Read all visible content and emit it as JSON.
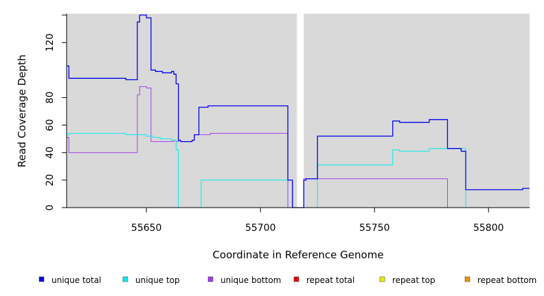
{
  "chart_data": {
    "type": "line",
    "step": true,
    "xlabel": "Coordinate in Reference Genome",
    "ylabel": "Read Coverage Depth",
    "xlim": [
      55615,
      55818
    ],
    "ylim": [
      0,
      141
    ],
    "x_ticks": [
      55650,
      55700,
      55750,
      55800
    ],
    "y_ticks": [
      0,
      20,
      40,
      60,
      80,
      120
    ],
    "gap": [
      55716,
      55719
    ],
    "background_color": "#d9d9d9",
    "grid": false,
    "legend_position": "bottom",
    "series": [
      {
        "name": "unique total",
        "color": "#0000ee",
        "points": [
          [
            55615,
            103
          ],
          [
            55616,
            94
          ],
          [
            55641,
            93
          ],
          [
            55646,
            135
          ],
          [
            55647,
            140
          ],
          [
            55650,
            138
          ],
          [
            55652,
            100
          ],
          [
            55654,
            99
          ],
          [
            55657,
            98
          ],
          [
            55661,
            99
          ],
          [
            55662,
            97
          ],
          [
            55663,
            90
          ],
          [
            55664,
            49
          ],
          [
            55665,
            48
          ],
          [
            55670,
            49
          ],
          [
            55671,
            53
          ],
          [
            55673,
            73
          ],
          [
            55677,
            74
          ],
          [
            55712,
            20
          ],
          [
            55714,
            0
          ],
          [
            55718,
            0
          ],
          [
            55719,
            20
          ],
          [
            55720,
            21
          ],
          [
            55725,
            52
          ],
          [
            55758,
            63
          ],
          [
            55761,
            62
          ],
          [
            55774,
            64
          ],
          [
            55782,
            43
          ],
          [
            55788,
            41
          ],
          [
            55790,
            13
          ],
          [
            55815,
            14
          ],
          [
            55818,
            14
          ]
        ]
      },
      {
        "name": "unique top",
        "color": "#00eeee",
        "points": [
          [
            55615,
            53
          ],
          [
            55616,
            54
          ],
          [
            55641,
            53
          ],
          [
            55650,
            52
          ],
          [
            55653,
            51
          ],
          [
            55656,
            50
          ],
          [
            55661,
            49
          ],
          [
            55663,
            42
          ],
          [
            55664,
            0
          ],
          [
            55674,
            20
          ],
          [
            55712,
            20
          ],
          [
            55714,
            0
          ],
          [
            55718,
            0
          ],
          [
            55725,
            31
          ],
          [
            55758,
            42
          ],
          [
            55761,
            41
          ],
          [
            55774,
            43
          ],
          [
            55790,
            0
          ],
          [
            55818,
            0
          ]
        ]
      },
      {
        "name": "unique bottom",
        "color": "#a040ee",
        "points": [
          [
            55615,
            51
          ],
          [
            55616,
            40
          ],
          [
            55646,
            82
          ],
          [
            55647,
            88
          ],
          [
            55650,
            87
          ],
          [
            55652,
            48
          ],
          [
            55662,
            49
          ],
          [
            55663,
            48
          ],
          [
            55664,
            49
          ],
          [
            55665,
            48
          ],
          [
            55670,
            49
          ],
          [
            55671,
            53
          ],
          [
            55678,
            54
          ],
          [
            55712,
            0
          ],
          [
            55719,
            21
          ],
          [
            55782,
            0
          ],
          [
            55818,
            0
          ]
        ]
      },
      {
        "name": "repeat total",
        "color": "#ee0000",
        "points": [
          [
            55615,
            0
          ],
          [
            55818,
            0
          ]
        ]
      },
      {
        "name": "repeat top",
        "color": "#eeee00",
        "points": [
          [
            55615,
            0
          ],
          [
            55818,
            0
          ]
        ]
      },
      {
        "name": "repeat bottom",
        "color": "#ee9900",
        "points": [
          [
            55615,
            0
          ],
          [
            55818,
            0
          ]
        ]
      }
    ]
  }
}
